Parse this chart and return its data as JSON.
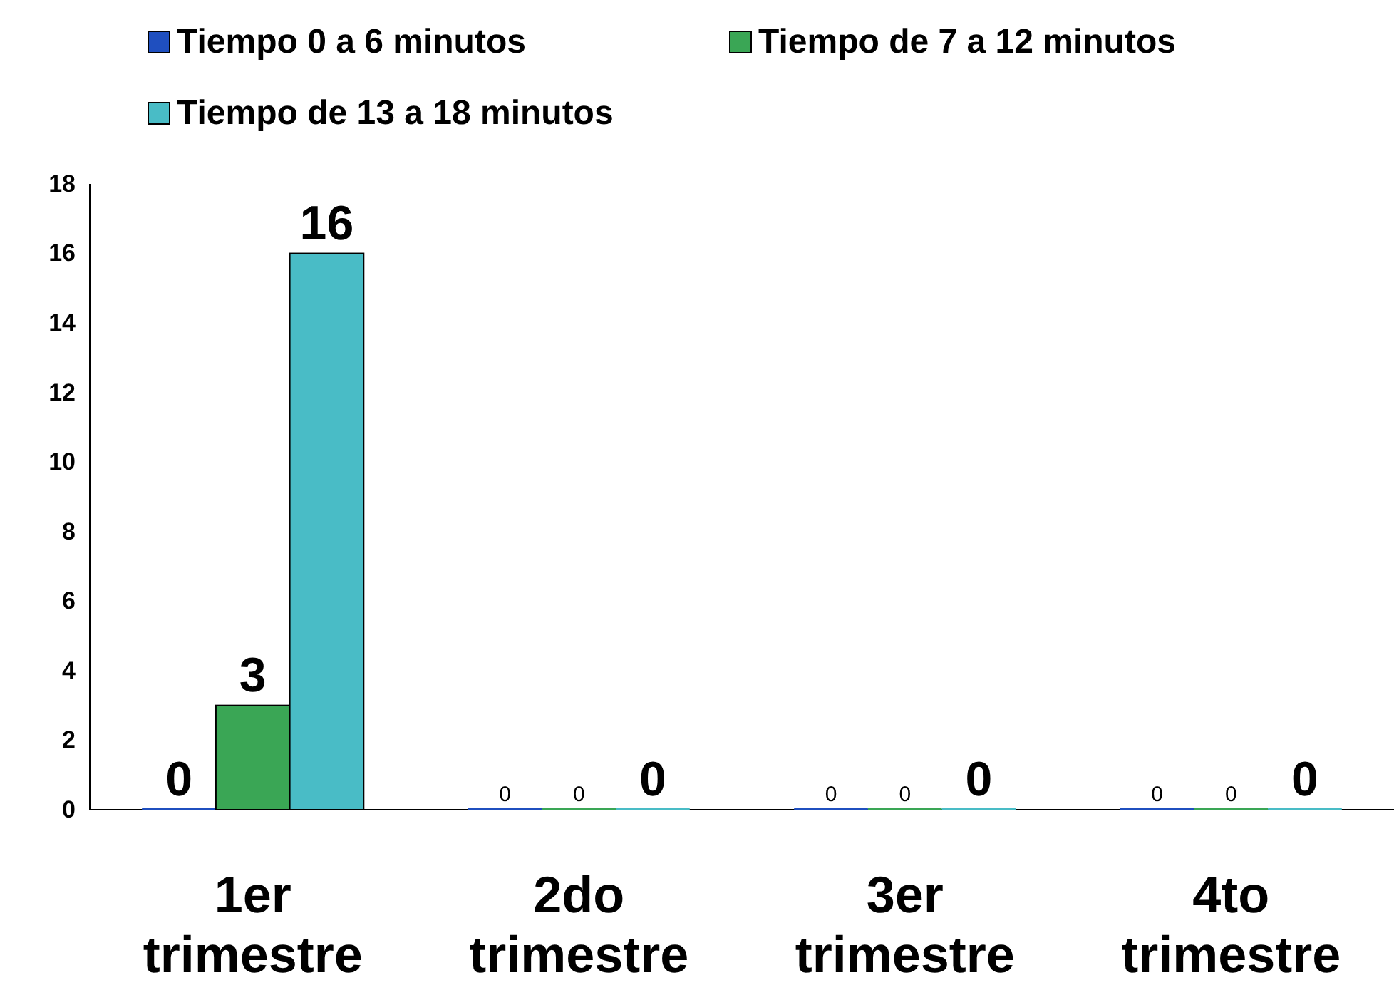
{
  "chart_data": {
    "type": "bar",
    "categories": [
      "1er trimestre",
      "2do trimestre",
      "3er trimestre",
      "4to trimestre"
    ],
    "series": [
      {
        "name": "Tiempo 0 a 6 minutos",
        "color": "#1f4fbf",
        "values": [
          0,
          0,
          0,
          0
        ]
      },
      {
        "name": "Tiempo de 7 a 12 minutos",
        "color": "#3aa655",
        "values": [
          3,
          0,
          0,
          0
        ]
      },
      {
        "name": "Tiempo de 13 a 18 minutos",
        "color": "#49bcc6",
        "values": [
          16,
          0,
          0,
          0
        ]
      }
    ],
    "ylim": [
      0,
      18
    ],
    "yticks": [
      0,
      2,
      4,
      6,
      8,
      10,
      12,
      14,
      16,
      18
    ],
    "grid": false,
    "legend": "top",
    "data_labels": true
  }
}
